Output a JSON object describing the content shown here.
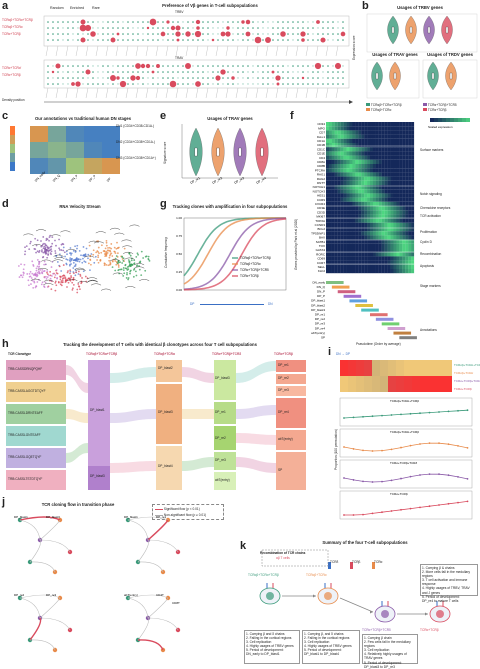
{
  "panels": {
    "a": {
      "label": "a",
      "title": "Preference of Vβ genes in T-cell subpopulations",
      "legend": [
        "Random",
        "Enriched",
        "Rare"
      ],
      "rows_top": [
        "TCRαβ+TCRα+TCRβ",
        "TCRαβ+TCRα",
        "TCRα+TCRβ"
      ],
      "rows_bottom": [
        "TCRα+TCRα'",
        "TCRα+TCRβ"
      ],
      "col_labels": [
        "TRAV",
        "TRBV"
      ],
      "side_labels": [
        "Density position"
      ]
    },
    "b": {
      "label": "b",
      "titles": [
        "Usages of TRBV genes",
        "Usages of TRAV genes",
        "Usages of TRDV genes"
      ],
      "ylabel": "Expression score",
      "legend": [
        "TCRαβ+TCRα+TCRβ",
        "TCRαβ+TCRα",
        "TCRα+TCRβ+TCRδ",
        "TCRα+TCRβ"
      ]
    },
    "c": {
      "label": "c",
      "title": "Our annotations vs traditional human DN stages",
      "rows": [
        "DN1 (CD34+CD38-CD1A-)",
        "DN2 (CD34+CD38+CD1A-)",
        "DN3 (CD34+CD38+CD1A+)"
      ],
      "cols": [
        "DN_early",
        "DN_Q",
        "DN_P",
        "DP_P",
        "DP"
      ],
      "scale": [
        "0.8",
        "0.6",
        "0.4",
        "0.2",
        "0"
      ]
    },
    "d": {
      "label": "d",
      "title": "RNA Velocity Stream"
    },
    "e": {
      "label": "e",
      "title": "Usages of TRAV genes",
      "ylabel": "Signature score",
      "xlabels": [
        "DP_re1",
        "DP_re2",
        "DP_re3",
        "DP_re4"
      ]
    },
    "f": {
      "label": "f",
      "xlabel": "Pseudotime (Order by average)",
      "ylabel": "Genes provided by Park et al (2020)",
      "legend_title": "Scaled expression",
      "genes": [
        "CD34",
        "MPO",
        "CD7",
        "IGLL1",
        "CD1A",
        "CD1B",
        "CD1C",
        "CD1E",
        "CD4",
        "CD8A",
        "CD8B",
        "PTCRA",
        "RAG1",
        "RAG2",
        "DNTT",
        "NOTCH1",
        "NOTCH3",
        "HES1",
        "CCR9",
        "CXCR4",
        "CD3E",
        "CD3D",
        "MKI67",
        "TOP2A",
        "CCND3",
        "BCL2",
        "TP53INP1",
        "BAX",
        "SATB1",
        "TOX",
        "GATA3",
        "RORC",
        "CD69",
        "CCR7",
        "SELL",
        "KLF2"
      ],
      "annotations": [
        "Surface markers",
        "Notch signaling",
        "Chemokine receptors",
        "TCR activation",
        "Proliferation",
        "Cyclin D",
        "Recombination",
        "Apoptosis",
        "Stage markers",
        "Annotations"
      ],
      "annot_rows": [
        "DN_early",
        "DN_Q",
        "DN_P",
        "DP_P",
        "DP_blast1",
        "DP_blast2",
        "DP_blast3",
        "DP_re1",
        "DP_re2",
        "DP_re3",
        "DP_re4",
        "abT(entry)",
        "SP"
      ]
    },
    "g": {
      "label": "g",
      "title": "Tracking clones with amplification in four subpopulations",
      "ylabel": "Cumulative frequency",
      "arrow_left": "DP",
      "arrow_right": "DN",
      "legend": [
        "TCRαβ+TCRα+TCRβ",
        "TCRαβ+TCRα",
        "TCRα+TCRβ+TCRδ",
        "TCRα+TCRβ"
      ],
      "ticks": [
        "0.00",
        "0.25",
        "0.50",
        "0.75",
        "1.00"
      ]
    },
    "h": {
      "label": "h",
      "title": "Tracking the development of T cells with identical β clonotypes across four T cell subpopulations",
      "col_heads": [
        "TCR Clonotype",
        "TCRαβ+TCRα+TCRβ",
        "TCRαβ+TCRα",
        "TCRα+TCRβ+TCRδ",
        "TCRα+TCRβ"
      ],
      "clonotypes": [
        "TRB:CASSDRNQPQHF",
        "TRB:CASSLAGGTDTQYF",
        "TRB:CASSLDRNTEAFF",
        "TRB:CASSLGNTEAFF",
        "TRB:CASSLGQETQYF",
        "TRB:CASSLTSTDTQYF"
      ],
      "col2": [
        "DP_blast1",
        "DP_blast3"
      ],
      "col3": [
        "DP_blast2",
        "DP_blast3",
        "DP_blast4"
      ],
      "col4": [
        "DP_blast3",
        "DP_re1",
        "DP_re2",
        "DP_re3",
        "abT(entry)"
      ],
      "col5": [
        "DP_re1",
        "DP_re2",
        "DP_re3",
        "DP_re4",
        "abT(entry)",
        "SP"
      ]
    },
    "i": {
      "label": "i",
      "arrow": "DN → DP",
      "rows": [
        "TCRαβ+TCRα+TCRβ",
        "TCRαβ+TCRα",
        "TCRα+TCRβ+TCRδ",
        "TCRα+TCRβ"
      ],
      "subtitles": [
        "TCRαβ+TCRα+TCRβ",
        "TCRαβ+TCRα+TCRβ",
        "TCRα+TCRβ+TCRδ",
        "TCRα+TCRβ"
      ],
      "ylabel": "Proportion (100 permutation)"
    },
    "j": {
      "label": "j",
      "title": "TCR cloning flow in transition phase",
      "legend": [
        "Significant flow (p < 0.01)",
        "Non-significant flow (p ≥ 0.01)"
      ],
      "nodes": [
        "DP_blast1",
        "DP_blast3",
        "DP_re1",
        "DP_re2",
        "DP_re3",
        "abT(entry)",
        "CD4T",
        "CD8T"
      ]
    },
    "k": {
      "label": "k",
      "title": "Summary of the four T-cell subpopulations",
      "recomb": "Recombination of TCR chains",
      "recomb_sub": "αβ T cells",
      "chains": [
        "TCRδ",
        "TCRβ",
        "TCRα"
      ],
      "cells": [
        "TCRαβ+TCRα+TCRβ",
        "TCRαβ+TCRα",
        "TCRα+TCRβ+TCRδ",
        "TCRα+TCRβ"
      ],
      "summary_1": [
        "1. Carrying β and δ chains",
        "2. Falling in the cortical regions",
        "3. Cell replication",
        "4. Highly usages of TRBV genes",
        "5. Period of development:",
        "   DN_early to DP_blast1"
      ],
      "summary_2": [
        "1. Carrying β, and δ chains",
        "2. Falling in the cortical regions",
        "3. Cell replication",
        "4. Highly usages of TRBV genes",
        "5. Period of development:",
        "   DP_blast1 to DP_blast4"
      ],
      "summary_3": [
        "1. Carrying β chain",
        "2. Few cells fall in the medullary regions",
        "3. Cell replication",
        "4. Relatively highly usages of TRAV genes",
        "5. Period of development:",
        "   DP_blast3 to DP_re3"
      ],
      "summary_4": [
        "1. Carrying β & chains",
        "2. More cells fall in the medullary regions",
        "3. T cell activation and immune response",
        "4. Highly usages of TRBV, TRAV and J genes",
        "5. Period of development:",
        "   DP_re4 to mature T cells"
      ]
    }
  },
  "colors": {
    "red": "#d94b5e",
    "green": "#3a9a7a",
    "purple": "#8a5aa8",
    "orange": "#e88b4a",
    "teal": "#2aa198"
  }
}
